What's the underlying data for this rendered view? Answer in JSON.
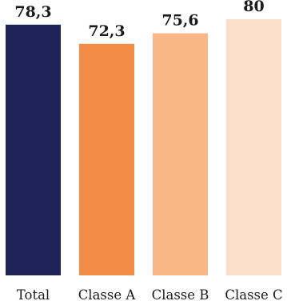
{
  "chart_data": {
    "type": "bar",
    "categories": [
      "Total",
      "Classe A",
      "Classe B",
      "Classe C"
    ],
    "values": [
      78.3,
      72.3,
      75.6,
      80
    ],
    "value_labels": [
      "78,3",
      "72,3",
      "75,6",
      "80"
    ],
    "colors": [
      "#1f2458",
      "#f28b45",
      "#f9b686",
      "#fde0cb"
    ],
    "title": "",
    "xlabel": "",
    "ylabel": "",
    "ylim": [
      0,
      86
    ],
    "grid": false,
    "legend": "none"
  }
}
